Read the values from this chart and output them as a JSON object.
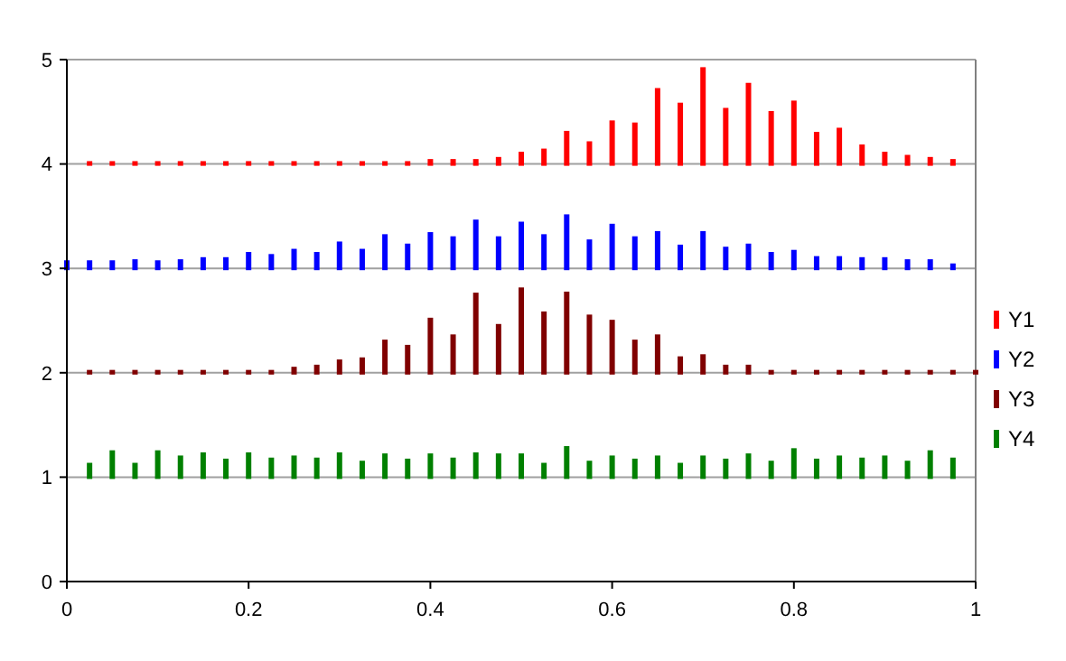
{
  "chart_data": {
    "type": "bar",
    "x": [
      0,
      0.025,
      0.05,
      0.075,
      0.1,
      0.125,
      0.15,
      0.175,
      0.2,
      0.225,
      0.25,
      0.275,
      0.3,
      0.325,
      0.35,
      0.375,
      0.4,
      0.425,
      0.45,
      0.475,
      0.5,
      0.525,
      0.55,
      0.575,
      0.6,
      0.625,
      0.65,
      0.675,
      0.7,
      0.725,
      0.75,
      0.775,
      0.8,
      0.825,
      0.85,
      0.875,
      0.9,
      0.925,
      0.95,
      0.975,
      1
    ],
    "series": [
      {
        "name": "Y1",
        "color": "#ff0000",
        "base": [
          null,
          4,
          4,
          4,
          4,
          4,
          4,
          4,
          4,
          4,
          4,
          4,
          4,
          4,
          4,
          4,
          4,
          4,
          4,
          4,
          4,
          4,
          4,
          4,
          4,
          4,
          4,
          4,
          4,
          4,
          4,
          4,
          4,
          4,
          4,
          4,
          4,
          4,
          4,
          4,
          null
        ],
        "values": [
          null,
          0.01,
          0.01,
          0.01,
          0.01,
          0.01,
          0.01,
          0.01,
          0.01,
          0.01,
          0.01,
          0.01,
          0.01,
          0.01,
          0.01,
          0.01,
          0.03,
          0.03,
          0.03,
          0.05,
          0.1,
          0.13,
          0.3,
          0.2,
          0.4,
          0.38,
          0.71,
          0.57,
          0.91,
          0.52,
          0.76,
          0.49,
          0.59,
          0.29,
          0.33,
          0.17,
          0.1,
          0.07,
          0.05,
          0.03,
          null
        ]
      },
      {
        "name": "Y2",
        "color": "#0000ff",
        "base": [
          3,
          3,
          3,
          3,
          3,
          3,
          3,
          3,
          3,
          3,
          3,
          3,
          3,
          3,
          3,
          3,
          3,
          3,
          3,
          3,
          3,
          3,
          3,
          3,
          3,
          3,
          3,
          3,
          3,
          3,
          3,
          3,
          3,
          3,
          3,
          3,
          3,
          3,
          3,
          3,
          null
        ],
        "values": [
          0.06,
          0.06,
          0.06,
          0.07,
          0.06,
          0.07,
          0.09,
          0.09,
          0.14,
          0.12,
          0.17,
          0.14,
          0.24,
          0.17,
          0.31,
          0.22,
          0.33,
          0.29,
          0.45,
          0.29,
          0.43,
          0.31,
          0.5,
          0.26,
          0.41,
          0.29,
          0.34,
          0.21,
          0.34,
          0.19,
          0.22,
          0.14,
          0.16,
          0.1,
          0.1,
          0.09,
          0.09,
          0.07,
          0.07,
          0.03,
          null
        ]
      },
      {
        "name": "Y3",
        "color": "#800000",
        "base": [
          null,
          2,
          2,
          2,
          2,
          2,
          2,
          2,
          2,
          2,
          2,
          2,
          2,
          2,
          2,
          2,
          2,
          2,
          2,
          2,
          2,
          2,
          2,
          2,
          2,
          2,
          2,
          2,
          2,
          2,
          2,
          2,
          2,
          2,
          2,
          2,
          2,
          2,
          2,
          2,
          2
        ],
        "values": [
          null,
          0.01,
          0.01,
          0.01,
          0.01,
          0.01,
          0.01,
          0.01,
          0.01,
          0.01,
          0.04,
          0.06,
          0.11,
          0.13,
          0.3,
          0.25,
          0.51,
          0.35,
          0.75,
          0.45,
          0.8,
          0.57,
          0.76,
          0.54,
          0.49,
          0.3,
          0.35,
          0.14,
          0.16,
          0.06,
          0.06,
          0.01,
          0.01,
          0.01,
          0.01,
          0.01,
          0.01,
          0.01,
          0.01,
          0.01,
          0.01
        ]
      },
      {
        "name": "Y4",
        "color": "#008000",
        "base": [
          null,
          1,
          1,
          1,
          1,
          1,
          1,
          1,
          1,
          1,
          1,
          1,
          1,
          1,
          1,
          1,
          1,
          1,
          1,
          1,
          1,
          1,
          1,
          1,
          1,
          1,
          1,
          1,
          1,
          1,
          1,
          1,
          1,
          1,
          1,
          1,
          1,
          1,
          1,
          1,
          null
        ],
        "values": [
          null,
          0.12,
          0.24,
          0.12,
          0.24,
          0.19,
          0.22,
          0.16,
          0.22,
          0.17,
          0.19,
          0.17,
          0.22,
          0.14,
          0.21,
          0.16,
          0.21,
          0.17,
          0.22,
          0.21,
          0.21,
          0.12,
          0.28,
          0.14,
          0.19,
          0.16,
          0.19,
          0.12,
          0.19,
          0.16,
          0.21,
          0.14,
          0.26,
          0.16,
          0.19,
          0.17,
          0.19,
          0.14,
          0.24,
          0.17,
          null
        ]
      }
    ],
    "xlim": [
      0,
      1
    ],
    "xticks": [
      0,
      0.2,
      0.4,
      0.6,
      0.8,
      1
    ],
    "ylim": [
      0,
      5
    ],
    "yticks": [
      0,
      1,
      2,
      3,
      4,
      5
    ],
    "grid": "y",
    "legend": "right"
  }
}
